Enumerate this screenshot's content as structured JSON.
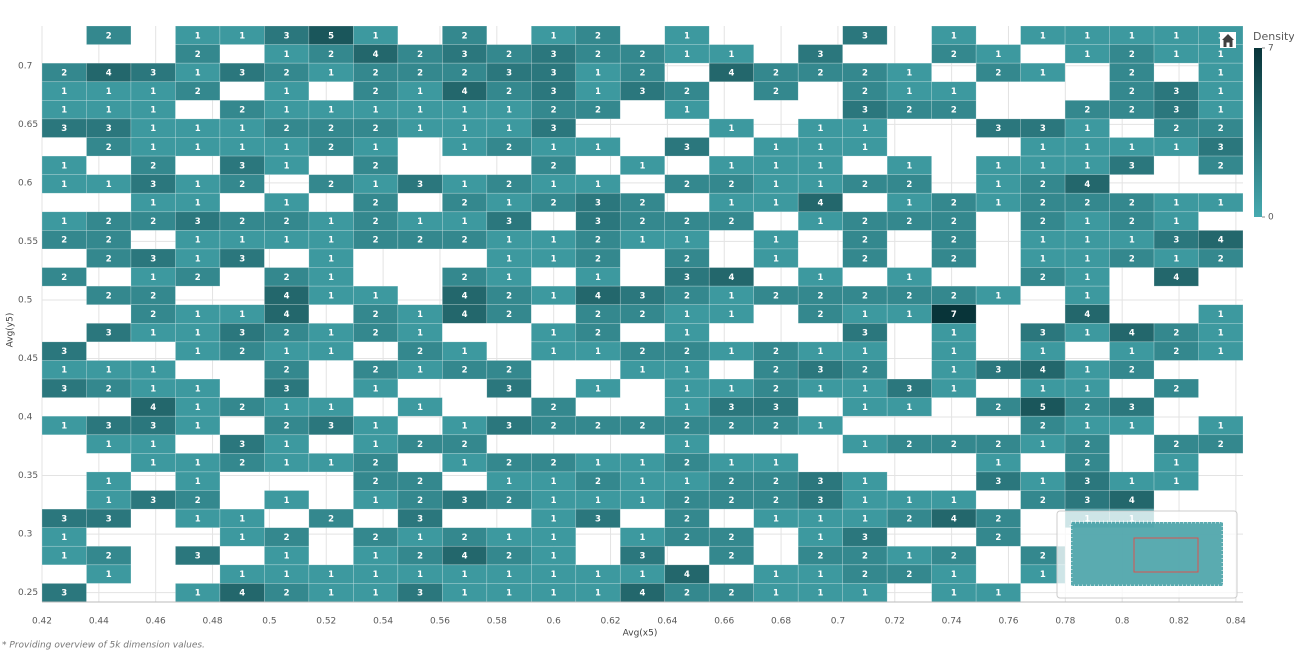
{
  "chart_data": {
    "type": "heatmap",
    "x_label": "Avg(x5)",
    "y_label": "Avg(y5)",
    "footnote": "* Providing overview of 5k dimension values.",
    "xlim": [
      0.42,
      0.8425
    ],
    "ylim": [
      0.242,
      0.734
    ],
    "xticks": [
      0.42,
      0.44,
      0.46,
      0.48,
      0.5,
      0.52,
      0.54,
      0.56,
      0.58,
      0.6,
      0.62,
      0.64,
      0.66,
      0.68,
      0.7,
      0.72,
      0.74,
      0.76,
      0.78,
      0.8,
      0.82,
      0.84
    ],
    "yticks": [
      0.25,
      0.3,
      0.35,
      0.4,
      0.45,
      0.5,
      0.55,
      0.6,
      0.65,
      0.7
    ],
    "grid": true,
    "colorbar": {
      "title": "Density",
      "lim": [
        0,
        7
      ],
      "ticks": [
        7,
        0
      ],
      "colors": [
        "#46aab0",
        "#083439"
      ]
    },
    "z": [
      [
        null,
        2,
        null,
        1,
        1,
        3,
        5,
        1,
        null,
        2,
        null,
        1,
        2,
        null,
        1,
        null,
        null,
        null,
        3,
        null,
        1,
        null,
        1,
        1,
        1,
        1,
        1
      ],
      [
        null,
        null,
        null,
        2,
        null,
        1,
        2,
        4,
        2,
        3,
        2,
        3,
        2,
        2,
        1,
        1,
        null,
        3,
        null,
        null,
        2,
        1,
        null,
        1,
        2,
        1,
        1
      ],
      [
        2,
        4,
        3,
        1,
        3,
        2,
        1,
        2,
        2,
        2,
        3,
        3,
        1,
        2,
        null,
        4,
        2,
        2,
        2,
        1,
        null,
        2,
        1,
        null,
        2,
        null,
        1
      ],
      [
        1,
        1,
        1,
        2,
        null,
        1,
        null,
        2,
        1,
        4,
        2,
        3,
        1,
        3,
        2,
        null,
        2,
        null,
        2,
        1,
        1,
        null,
        null,
        null,
        2,
        3,
        1
      ],
      [
        1,
        1,
        1,
        null,
        2,
        1,
        1,
        1,
        1,
        1,
        1,
        2,
        2,
        null,
        1,
        null,
        null,
        null,
        3,
        2,
        2,
        null,
        null,
        2,
        2,
        3,
        1
      ],
      [
        3,
        3,
        1,
        1,
        1,
        2,
        2,
        2,
        1,
        1,
        1,
        3,
        null,
        null,
        null,
        1,
        null,
        1,
        1,
        null,
        null,
        3,
        3,
        1,
        null,
        2,
        2
      ],
      [
        null,
        2,
        1,
        1,
        1,
        1,
        2,
        1,
        null,
        1,
        2,
        1,
        1,
        null,
        3,
        null,
        1,
        1,
        1,
        null,
        null,
        null,
        1,
        1,
        1,
        1,
        3
      ],
      [
        1,
        null,
        2,
        null,
        3,
        1,
        null,
        2,
        null,
        null,
        null,
        2,
        null,
        1,
        null,
        1,
        1,
        1,
        null,
        1,
        null,
        1,
        1,
        1,
        3,
        null,
        2
      ],
      [
        1,
        1,
        3,
        1,
        2,
        null,
        2,
        1,
        3,
        1,
        2,
        1,
        1,
        null,
        2,
        2,
        1,
        1,
        2,
        2,
        null,
        1,
        2,
        4,
        null,
        null,
        null
      ],
      [
        null,
        null,
        1,
        1,
        null,
        1,
        null,
        2,
        null,
        2,
        1,
        2,
        3,
        2,
        null,
        1,
        1,
        4,
        null,
        1,
        2,
        1,
        2,
        2,
        2,
        1,
        1
      ],
      [
        1,
        2,
        2,
        3,
        2,
        2,
        1,
        2,
        1,
        1,
        3,
        null,
        3,
        2,
        2,
        2,
        null,
        1,
        2,
        2,
        2,
        null,
        2,
        1,
        2,
        1,
        null
      ],
      [
        2,
        2,
        null,
        1,
        1,
        1,
        1,
        2,
        2,
        2,
        1,
        1,
        2,
        1,
        1,
        null,
        1,
        null,
        2,
        null,
        2,
        null,
        1,
        1,
        1,
        3,
        4
      ],
      [
        null,
        2,
        3,
        1,
        3,
        null,
        1,
        null,
        null,
        null,
        1,
        1,
        2,
        null,
        2,
        null,
        1,
        null,
        2,
        null,
        2,
        null,
        1,
        1,
        2,
        1,
        2
      ],
      [
        2,
        null,
        1,
        2,
        null,
        2,
        1,
        null,
        null,
        2,
        1,
        null,
        1,
        null,
        3,
        4,
        null,
        1,
        null,
        1,
        null,
        null,
        2,
        1,
        null,
        4,
        null
      ],
      [
        null,
        2,
        2,
        null,
        null,
        4,
        1,
        1,
        null,
        4,
        2,
        1,
        4,
        3,
        2,
        1,
        2,
        2,
        2,
        2,
        2,
        1,
        null,
        1,
        null,
        null,
        null
      ],
      [
        null,
        null,
        2,
        1,
        1,
        4,
        null,
        2,
        1,
        4,
        2,
        null,
        2,
        2,
        1,
        1,
        null,
        2,
        1,
        1,
        7,
        null,
        null,
        4,
        null,
        null,
        1
      ],
      [
        null,
        3,
        1,
        1,
        3,
        2,
        1,
        2,
        1,
        null,
        null,
        1,
        2,
        null,
        1,
        null,
        null,
        null,
        3,
        null,
        1,
        null,
        3,
        1,
        4,
        2,
        1
      ],
      [
        3,
        null,
        null,
        1,
        2,
        1,
        1,
        null,
        2,
        1,
        null,
        1,
        1,
        2,
        2,
        1,
        2,
        1,
        1,
        null,
        1,
        null,
        1,
        null,
        1,
        2,
        1
      ],
      [
        1,
        1,
        1,
        null,
        null,
        2,
        null,
        2,
        1,
        2,
        2,
        null,
        null,
        1,
        1,
        null,
        2,
        3,
        2,
        null,
        1,
        3,
        4,
        1,
        2,
        null,
        null
      ],
      [
        3,
        2,
        1,
        1,
        null,
        3,
        null,
        1,
        null,
        null,
        3,
        null,
        1,
        null,
        1,
        1,
        2,
        1,
        1,
        3,
        1,
        null,
        1,
        1,
        null,
        2,
        null
      ],
      [
        null,
        null,
        4,
        1,
        2,
        1,
        1,
        null,
        1,
        null,
        null,
        2,
        null,
        null,
        1,
        3,
        3,
        null,
        1,
        1,
        null,
        2,
        5,
        2,
        3,
        null,
        null
      ],
      [
        1,
        3,
        3,
        1,
        null,
        2,
        3,
        1,
        null,
        1,
        3,
        2,
        2,
        2,
        2,
        2,
        2,
        1,
        null,
        null,
        null,
        null,
        2,
        1,
        1,
        null,
        1
      ],
      [
        null,
        1,
        1,
        null,
        3,
        1,
        null,
        1,
        2,
        2,
        null,
        null,
        null,
        null,
        1,
        null,
        null,
        null,
        1,
        2,
        2,
        2,
        1,
        2,
        null,
        2,
        2
      ],
      [
        null,
        null,
        1,
        1,
        2,
        1,
        1,
        2,
        null,
        1,
        2,
        2,
        1,
        1,
        2,
        1,
        1,
        null,
        null,
        null,
        null,
        1,
        null,
        2,
        null,
        1,
        null
      ],
      [
        null,
        1,
        null,
        1,
        null,
        null,
        null,
        2,
        2,
        null,
        1,
        1,
        2,
        1,
        1,
        2,
        2,
        3,
        1,
        null,
        null,
        3,
        1,
        3,
        1,
        1,
        null
      ],
      [
        null,
        1,
        3,
        2,
        null,
        1,
        null,
        1,
        2,
        3,
        2,
        1,
        1,
        1,
        2,
        2,
        2,
        3,
        1,
        1,
        1,
        null,
        2,
        3,
        4,
        null,
        null
      ],
      [
        3,
        3,
        null,
        1,
        1,
        null,
        2,
        null,
        3,
        null,
        null,
        1,
        3,
        null,
        2,
        null,
        1,
        1,
        1,
        2,
        4,
        2,
        null,
        1,
        1,
        null,
        null
      ],
      [
        1,
        null,
        null,
        null,
        1,
        2,
        null,
        2,
        1,
        2,
        1,
        1,
        null,
        1,
        2,
        2,
        null,
        1,
        3,
        null,
        null,
        2,
        null,
        null,
        null,
        null,
        null
      ],
      [
        1,
        2,
        null,
        3,
        null,
        1,
        null,
        1,
        2,
        4,
        2,
        1,
        null,
        3,
        null,
        2,
        null,
        2,
        2,
        1,
        2,
        null,
        2,
        null,
        null,
        null,
        null
      ],
      [
        null,
        1,
        null,
        null,
        1,
        1,
        1,
        1,
        1,
        1,
        1,
        1,
        1,
        1,
        4,
        null,
        1,
        1,
        2,
        2,
        1,
        null,
        1,
        null,
        null,
        null,
        null
      ],
      [
        3,
        null,
        null,
        1,
        4,
        2,
        1,
        1,
        3,
        1,
        1,
        1,
        1,
        4,
        2,
        2,
        1,
        1,
        1,
        null,
        1,
        1,
        null,
        null,
        null,
        null,
        null
      ]
    ]
  }
}
